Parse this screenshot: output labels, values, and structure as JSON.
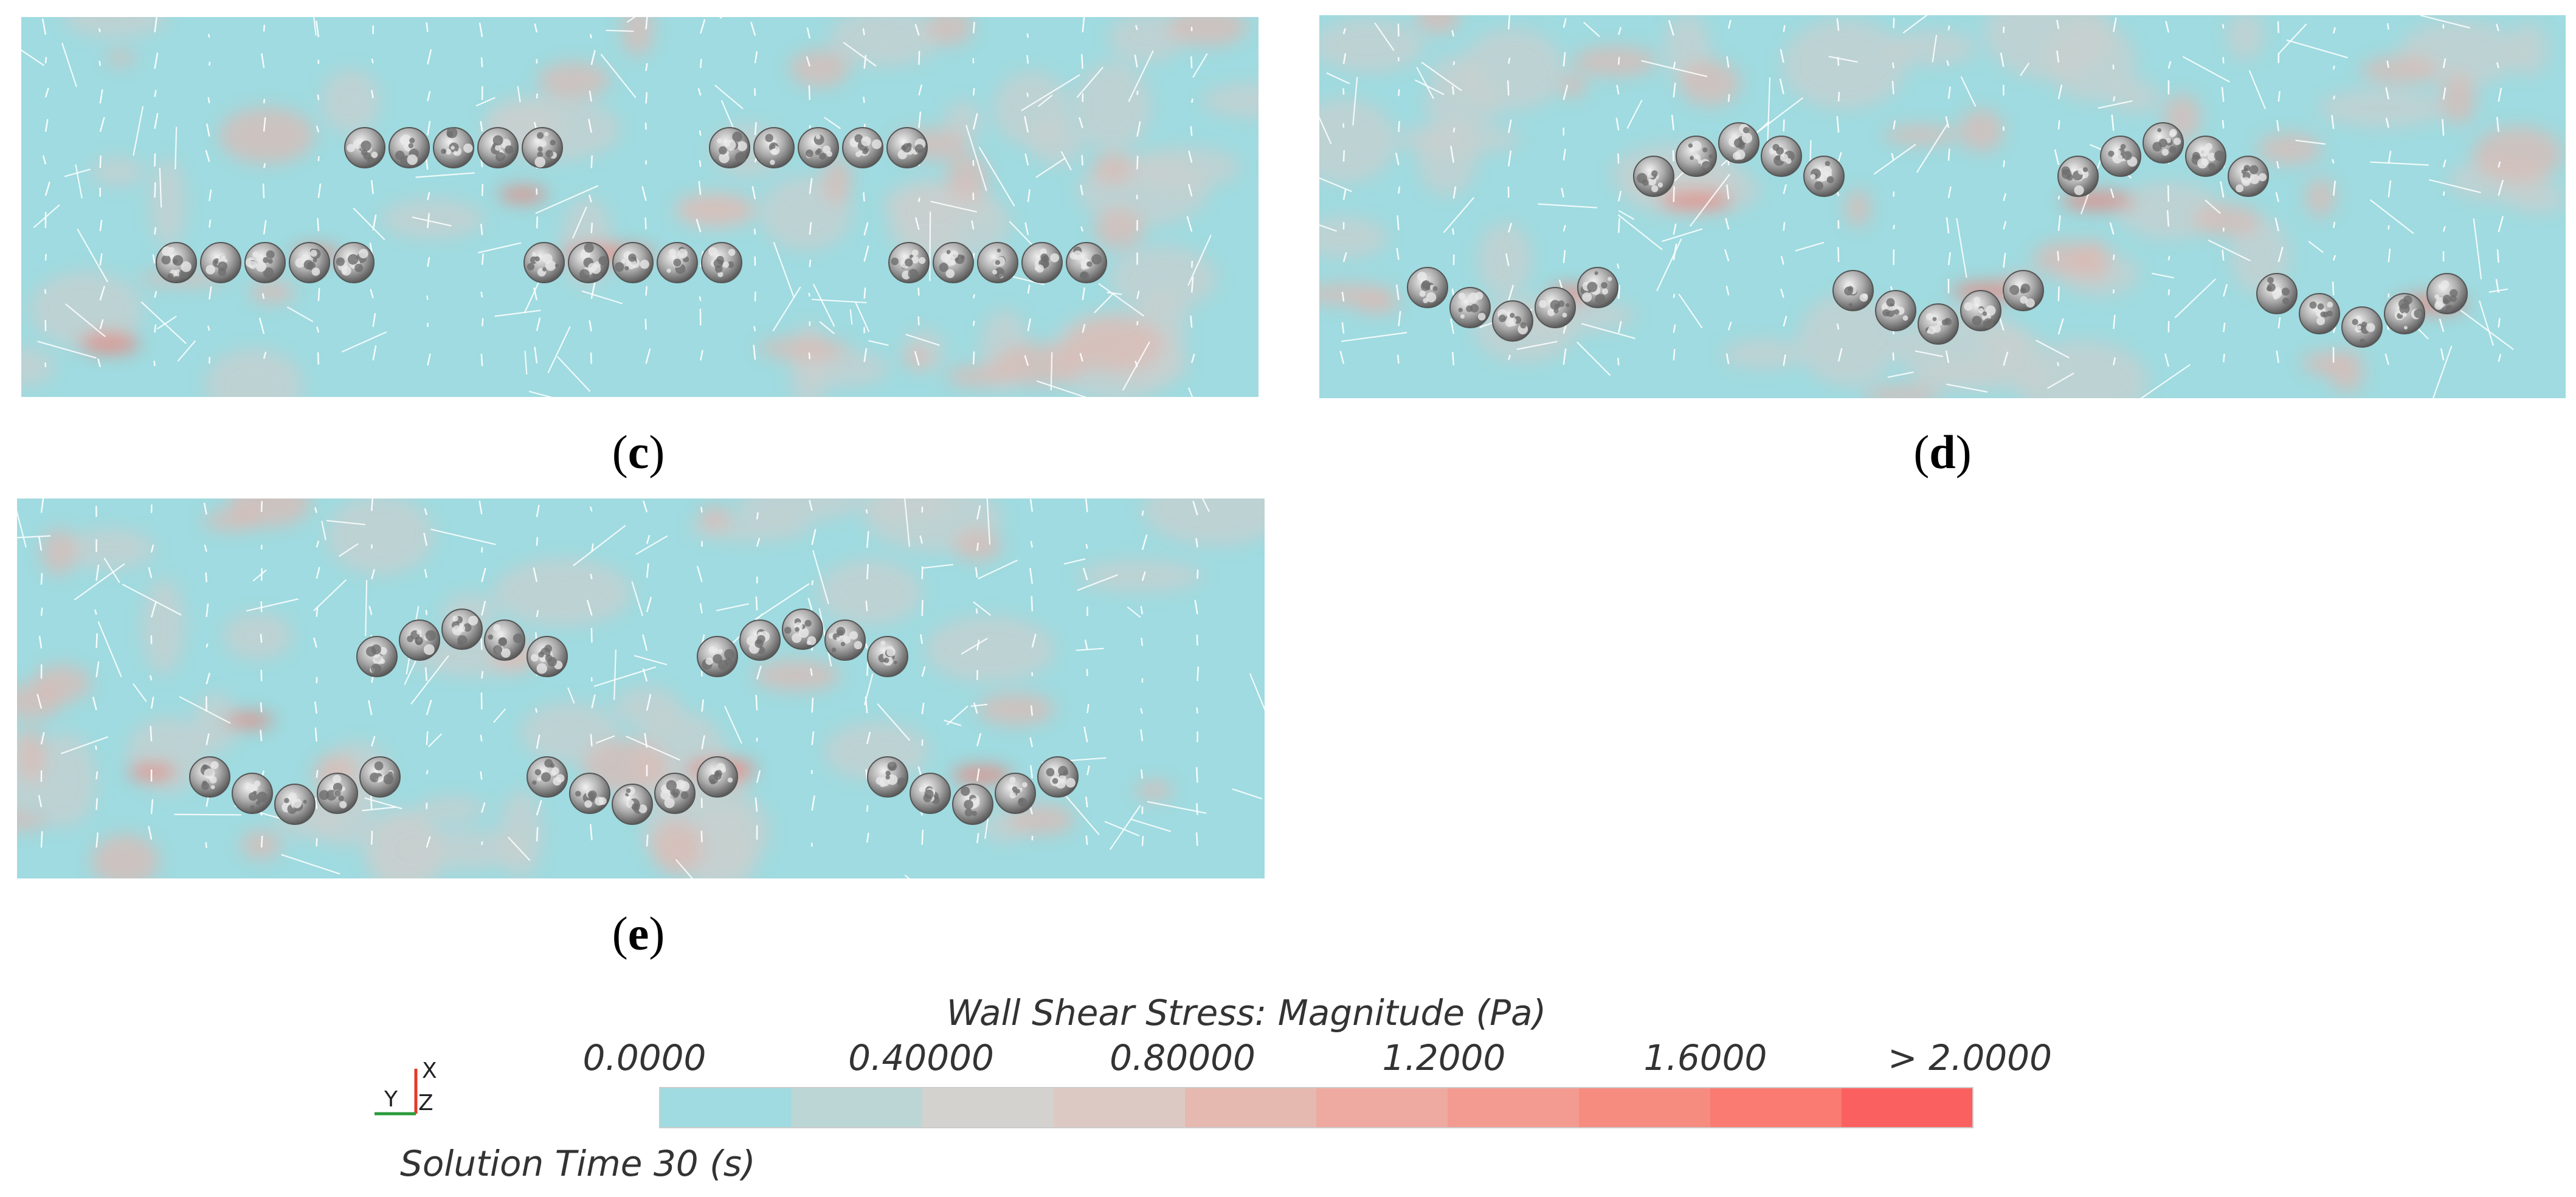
{
  "panels": [
    {
      "label_open": "(",
      "label_letter": "c",
      "label_close": ")",
      "layout": "two-rows-straight"
    },
    {
      "label_open": "(",
      "label_letter": "d",
      "label_close": ")",
      "layout": "wave"
    },
    {
      "label_open": "(",
      "label_letter": "e",
      "label_close": ")",
      "layout": "wave"
    }
  ],
  "colorbar": {
    "title": "Wall Shear Stress: Magnitude (Pa)",
    "tick_labels": [
      "0.0000",
      "0.40000",
      "0.80000",
      "1.2000",
      "1.6000",
      "> 2.0000"
    ],
    "range": [
      0,
      2.0
    ],
    "colors": [
      "#9fdbe0",
      "#bcd6d6",
      "#d3d2cf",
      "#ddc9c3",
      "#e6b9b0",
      "#eeaaa0",
      "#f39b90",
      "#f68b80",
      "#f97b72",
      "#fb6060"
    ]
  },
  "axes_triad": {
    "x_label": "X",
    "y_label": "Y",
    "z_label": "Z"
  },
  "solution_time": "Solution Time 30 (s)",
  "field_colors": {
    "background": "#9fdbe0",
    "patch_light": "#d2cccb",
    "patch_pink": "#eab2aa",
    "patch_red": "#f17b70",
    "particle": "#9a9a9a"
  }
}
